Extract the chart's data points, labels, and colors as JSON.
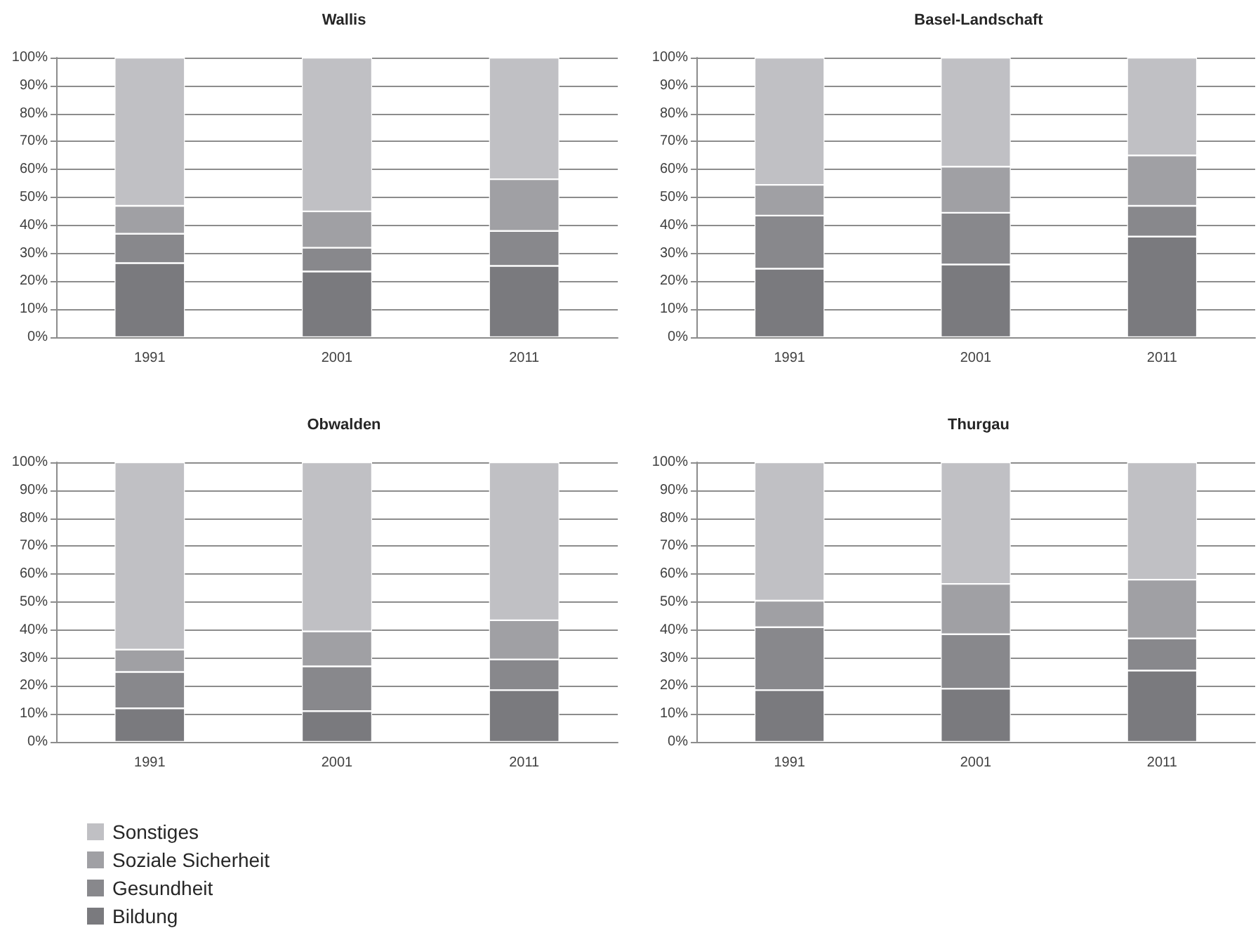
{
  "chart_data": [
    {
      "type": "bar",
      "title": "Wallis",
      "categories": [
        "1991",
        "2001",
        "2011"
      ],
      "stacked": true,
      "grid": "y",
      "legend": false,
      "ylim": [
        0,
        100
      ],
      "yticks": [
        {
          "value": 0,
          "label": "0%"
        },
        {
          "value": 10,
          "label": "10%"
        },
        {
          "value": 20,
          "label": "20%"
        },
        {
          "value": 30,
          "label": "30%"
        },
        {
          "value": 40,
          "label": "40%"
        },
        {
          "value": 50,
          "label": "50%"
        },
        {
          "value": 60,
          "label": "60%"
        },
        {
          "value": 70,
          "label": "70%"
        },
        {
          "value": 80,
          "label": "80%"
        },
        {
          "value": 90,
          "label": "90%"
        },
        {
          "value": 100,
          "label": "100%"
        }
      ],
      "series": [
        {
          "color": "#7a7a7e",
          "values": [
            26.5,
            23.5,
            25.5
          ]
        },
        {
          "color": "#88888c",
          "values": [
            10.5,
            8.5,
            12.5
          ]
        },
        {
          "color": "#a0a0a4",
          "values": [
            10,
            13,
            18.5
          ]
        },
        {
          "color": "#c0c0c4",
          "values": [
            53,
            55,
            43.5
          ]
        }
      ]
    },
    {
      "type": "bar",
      "title": "Basel-Landschaft",
      "categories": [
        "1991",
        "2001",
        "2011"
      ],
      "stacked": true,
      "grid": "y",
      "legend": false,
      "ylim": [
        0,
        100
      ],
      "yticks": [
        {
          "value": 0,
          "label": "0%"
        },
        {
          "value": 10,
          "label": "10%"
        },
        {
          "value": 20,
          "label": "20%"
        },
        {
          "value": 30,
          "label": "30%"
        },
        {
          "value": 40,
          "label": "40%"
        },
        {
          "value": 50,
          "label": "50%"
        },
        {
          "value": 60,
          "label": "60%"
        },
        {
          "value": 70,
          "label": "70%"
        },
        {
          "value": 80,
          "label": "80%"
        },
        {
          "value": 90,
          "label": "90%"
        },
        {
          "value": 100,
          "label": "100%"
        }
      ],
      "series": [
        {
          "color": "#7a7a7e",
          "values": [
            24.5,
            26,
            36
          ]
        },
        {
          "color": "#88888c",
          "values": [
            19,
            18.5,
            11
          ]
        },
        {
          "color": "#a0a0a4",
          "values": [
            11,
            16.5,
            18
          ]
        },
        {
          "color": "#c0c0c4",
          "values": [
            45.5,
            39,
            35
          ]
        }
      ]
    },
    {
      "type": "bar",
      "title": "Obwalden",
      "categories": [
        "1991",
        "2001",
        "2011"
      ],
      "stacked": true,
      "grid": "y",
      "legend": "bottom left",
      "ylim": [
        0,
        100
      ],
      "yticks": [
        {
          "value": 0,
          "label": "0%"
        },
        {
          "value": 10,
          "label": "10%"
        },
        {
          "value": 20,
          "label": "20%"
        },
        {
          "value": 30,
          "label": "30%"
        },
        {
          "value": 40,
          "label": "40%"
        },
        {
          "value": 50,
          "label": "50%"
        },
        {
          "value": 60,
          "label": "60%"
        },
        {
          "value": 70,
          "label": "70%"
        },
        {
          "value": 80,
          "label": "80%"
        },
        {
          "value": 90,
          "label": "90%"
        },
        {
          "value": 100,
          "label": "100%"
        }
      ],
      "series": [
        {
          "name": "Bildung",
          "color": "#7a7a7e",
          "values": [
            12,
            11,
            18.5
          ]
        },
        {
          "name": "Gesundheit",
          "color": "#88888c",
          "values": [
            13,
            16,
            11
          ]
        },
        {
          "name": "Soziale Sicherheit",
          "color": "#a0a0a4",
          "values": [
            8,
            12.5,
            14
          ]
        },
        {
          "name": "Sonstiges",
          "color": "#c0c0c4",
          "values": [
            67,
            60.5,
            56.5
          ]
        }
      ]
    },
    {
      "type": "bar",
      "title": "Thurgau",
      "categories": [
        "1991",
        "2001",
        "2011"
      ],
      "stacked": true,
      "grid": "y",
      "legend": false,
      "ylim": [
        0,
        100
      ],
      "yticks": [
        {
          "value": 0,
          "label": "0%"
        },
        {
          "value": 10,
          "label": "10%"
        },
        {
          "value": 20,
          "label": "20%"
        },
        {
          "value": 30,
          "label": "30%"
        },
        {
          "value": 40,
          "label": "40%"
        },
        {
          "value": 50,
          "label": "50%"
        },
        {
          "value": 60,
          "label": "60%"
        },
        {
          "value": 70,
          "label": "70%"
        },
        {
          "value": 80,
          "label": "80%"
        },
        {
          "value": 90,
          "label": "90%"
        },
        {
          "value": 100,
          "label": "100%"
        }
      ],
      "series": [
        {
          "color": "#7a7a7e",
          "values": [
            18.5,
            19,
            25.5
          ]
        },
        {
          "color": "#88888c",
          "values": [
            22.5,
            19.5,
            11.5
          ]
        },
        {
          "color": "#a0a0a4",
          "values": [
            9.5,
            18,
            21
          ]
        },
        {
          "color": "#c0c0c4",
          "values": [
            49.5,
            43.5,
            42
          ]
        }
      ]
    }
  ]
}
